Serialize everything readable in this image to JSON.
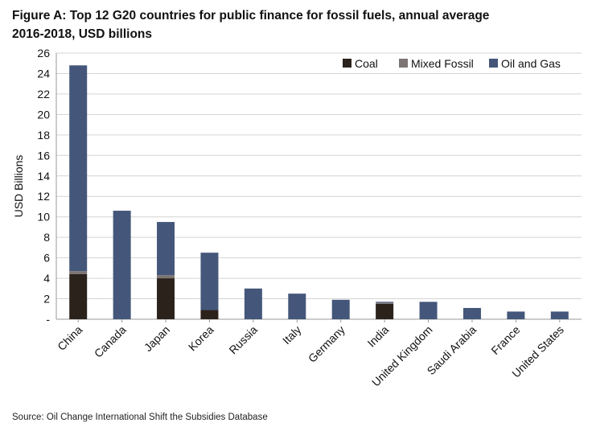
{
  "title_line1": "Figure A: Top 12 G20 countries for public finance for fossil fuels, annual average",
  "title_line2": "2016-2018, USD billions",
  "source": "Source: Oil Change International Shift the Subsidies Database",
  "chart_data": {
    "type": "bar",
    "stacked": true,
    "ylabel": "USD Billions",
    "ylim": [
      0,
      26
    ],
    "ytick_labels": [
      "-",
      "2",
      "4",
      "6",
      "8",
      "10",
      "12",
      "14",
      "16",
      "18",
      "20",
      "22",
      "24",
      "26"
    ],
    "grid": true,
    "legend_position": "top-right",
    "categories": [
      "China",
      "Canada",
      "Japan",
      "Korea",
      "Russia",
      "Italy",
      "Germany",
      "India",
      "United Kingdom",
      "Saudi Arabia",
      "France",
      "United States"
    ],
    "series": [
      {
        "name": "Coal",
        "color": "#2b221c",
        "values": [
          4.4,
          0,
          4.0,
          0.9,
          0,
          0,
          0,
          1.5,
          0,
          0,
          0,
          0
        ]
      },
      {
        "name": "Mixed Fossil",
        "color": "#7d7573",
        "values": [
          0.3,
          0,
          0.3,
          0,
          0,
          0,
          0,
          0.1,
          0,
          0,
          0,
          0
        ]
      },
      {
        "name": "Oil and Gas",
        "color": "#44577a",
        "values": [
          20.1,
          10.6,
          5.2,
          5.6,
          3.0,
          2.5,
          1.9,
          0.1,
          1.7,
          1.1,
          0.75,
          0.75
        ]
      }
    ]
  }
}
